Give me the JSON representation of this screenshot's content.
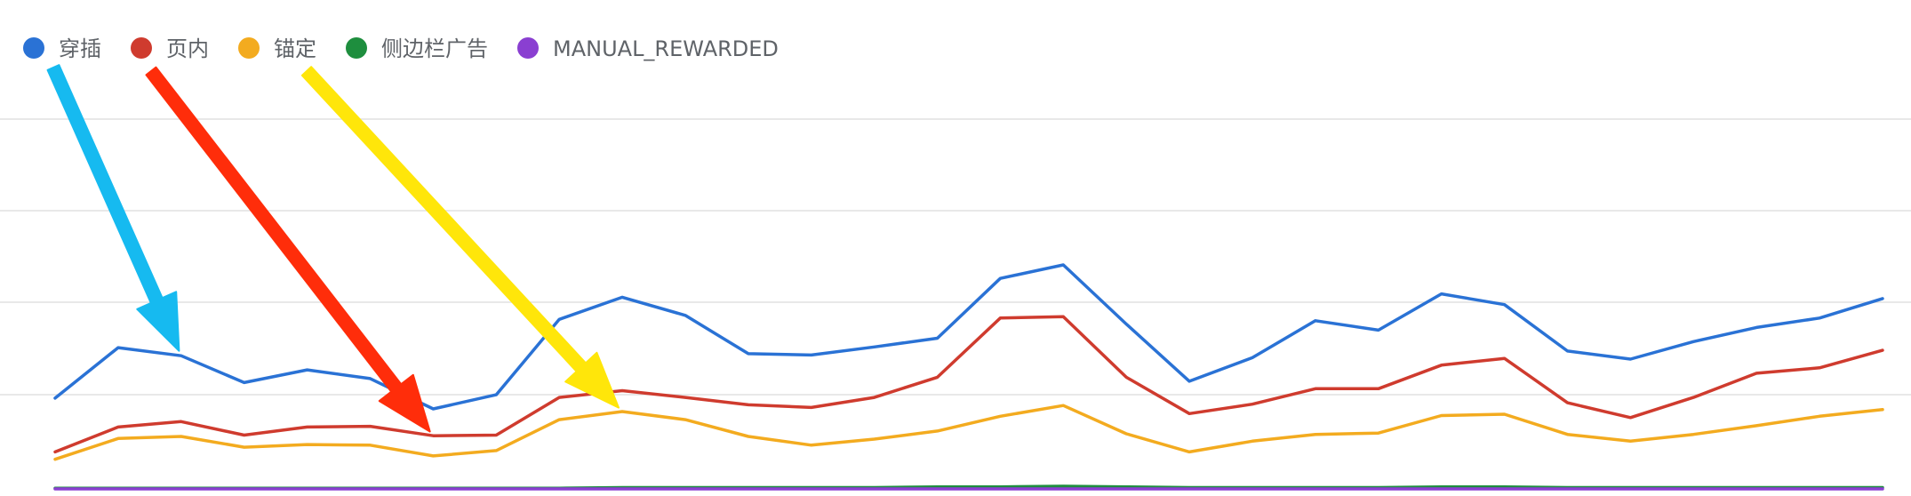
{
  "chart_data": {
    "type": "line",
    "title": "",
    "xlabel": "",
    "ylabel": "",
    "ylim": [
      0,
      6
    ],
    "grid": true,
    "legend_position": "top-left",
    "x": [
      1,
      2,
      3,
      4,
      5,
      6,
      7,
      8,
      9,
      10,
      11,
      12,
      13,
      14,
      15,
      16,
      17,
      18,
      19,
      20,
      21,
      22,
      23,
      24,
      25,
      26,
      27,
      28,
      29,
      30
    ],
    "series": [
      {
        "name": "穿插",
        "color": "#2a72d5",
        "values": [
          1.35,
          2.1,
          1.98,
          1.58,
          1.77,
          1.64,
          1.19,
          1.4,
          2.52,
          2.85,
          2.58,
          2.01,
          1.99,
          2.11,
          2.24,
          3.13,
          3.33,
          2.45,
          1.6,
          1.95,
          2.5,
          2.36,
          2.9,
          2.74,
          2.05,
          1.93,
          2.19,
          2.4,
          2.54,
          2.83
        ]
      },
      {
        "name": "页内",
        "color": "#cf3b2e",
        "values": [
          0.55,
          0.92,
          1.0,
          0.8,
          0.92,
          0.93,
          0.79,
          0.8,
          1.36,
          1.46,
          1.36,
          1.25,
          1.21,
          1.36,
          1.66,
          2.54,
          2.56,
          1.66,
          1.12,
          1.26,
          1.49,
          1.49,
          1.84,
          1.94,
          1.28,
          1.06,
          1.36,
          1.72,
          1.8,
          2.06
        ]
      },
      {
        "name": "锚定",
        "color": "#f3ab1f",
        "values": [
          0.44,
          0.75,
          0.78,
          0.62,
          0.66,
          0.65,
          0.49,
          0.57,
          1.03,
          1.15,
          1.03,
          0.78,
          0.65,
          0.74,
          0.86,
          1.08,
          1.24,
          0.82,
          0.55,
          0.71,
          0.81,
          0.83,
          1.09,
          1.11,
          0.81,
          0.71,
          0.81,
          0.94,
          1.08,
          1.18
        ]
      },
      {
        "name": "侧边栏广告",
        "color": "#1e8e3e",
        "values": [
          0.01,
          0.01,
          0.01,
          0.01,
          0.01,
          0.01,
          0.01,
          0.01,
          0.01,
          0.02,
          0.02,
          0.02,
          0.02,
          0.02,
          0.03,
          0.03,
          0.04,
          0.03,
          0.02,
          0.02,
          0.02,
          0.02,
          0.03,
          0.03,
          0.02,
          0.02,
          0.02,
          0.02,
          0.02,
          0.02
        ]
      },
      {
        "name": "MANUAL_REWARDED",
        "color": "#8a3fd1",
        "values": [
          0,
          0,
          0,
          0,
          0,
          0,
          0,
          0,
          0,
          0,
          0,
          0,
          0,
          0,
          0,
          0,
          0,
          0,
          0,
          0,
          0,
          0,
          0,
          0,
          0,
          0,
          0,
          0,
          0,
          0
        ]
      }
    ],
    "annotations": [
      {
        "type": "arrow",
        "color": "#16baf0",
        "target_series": "穿插",
        "target_index": 2
      },
      {
        "type": "arrow",
        "color": "#ff2d0a",
        "target_series": "页内",
        "target_index": 6
      },
      {
        "type": "arrow",
        "color": "#ffe60a",
        "target_series": "锚定",
        "target_index": 9
      }
    ]
  }
}
